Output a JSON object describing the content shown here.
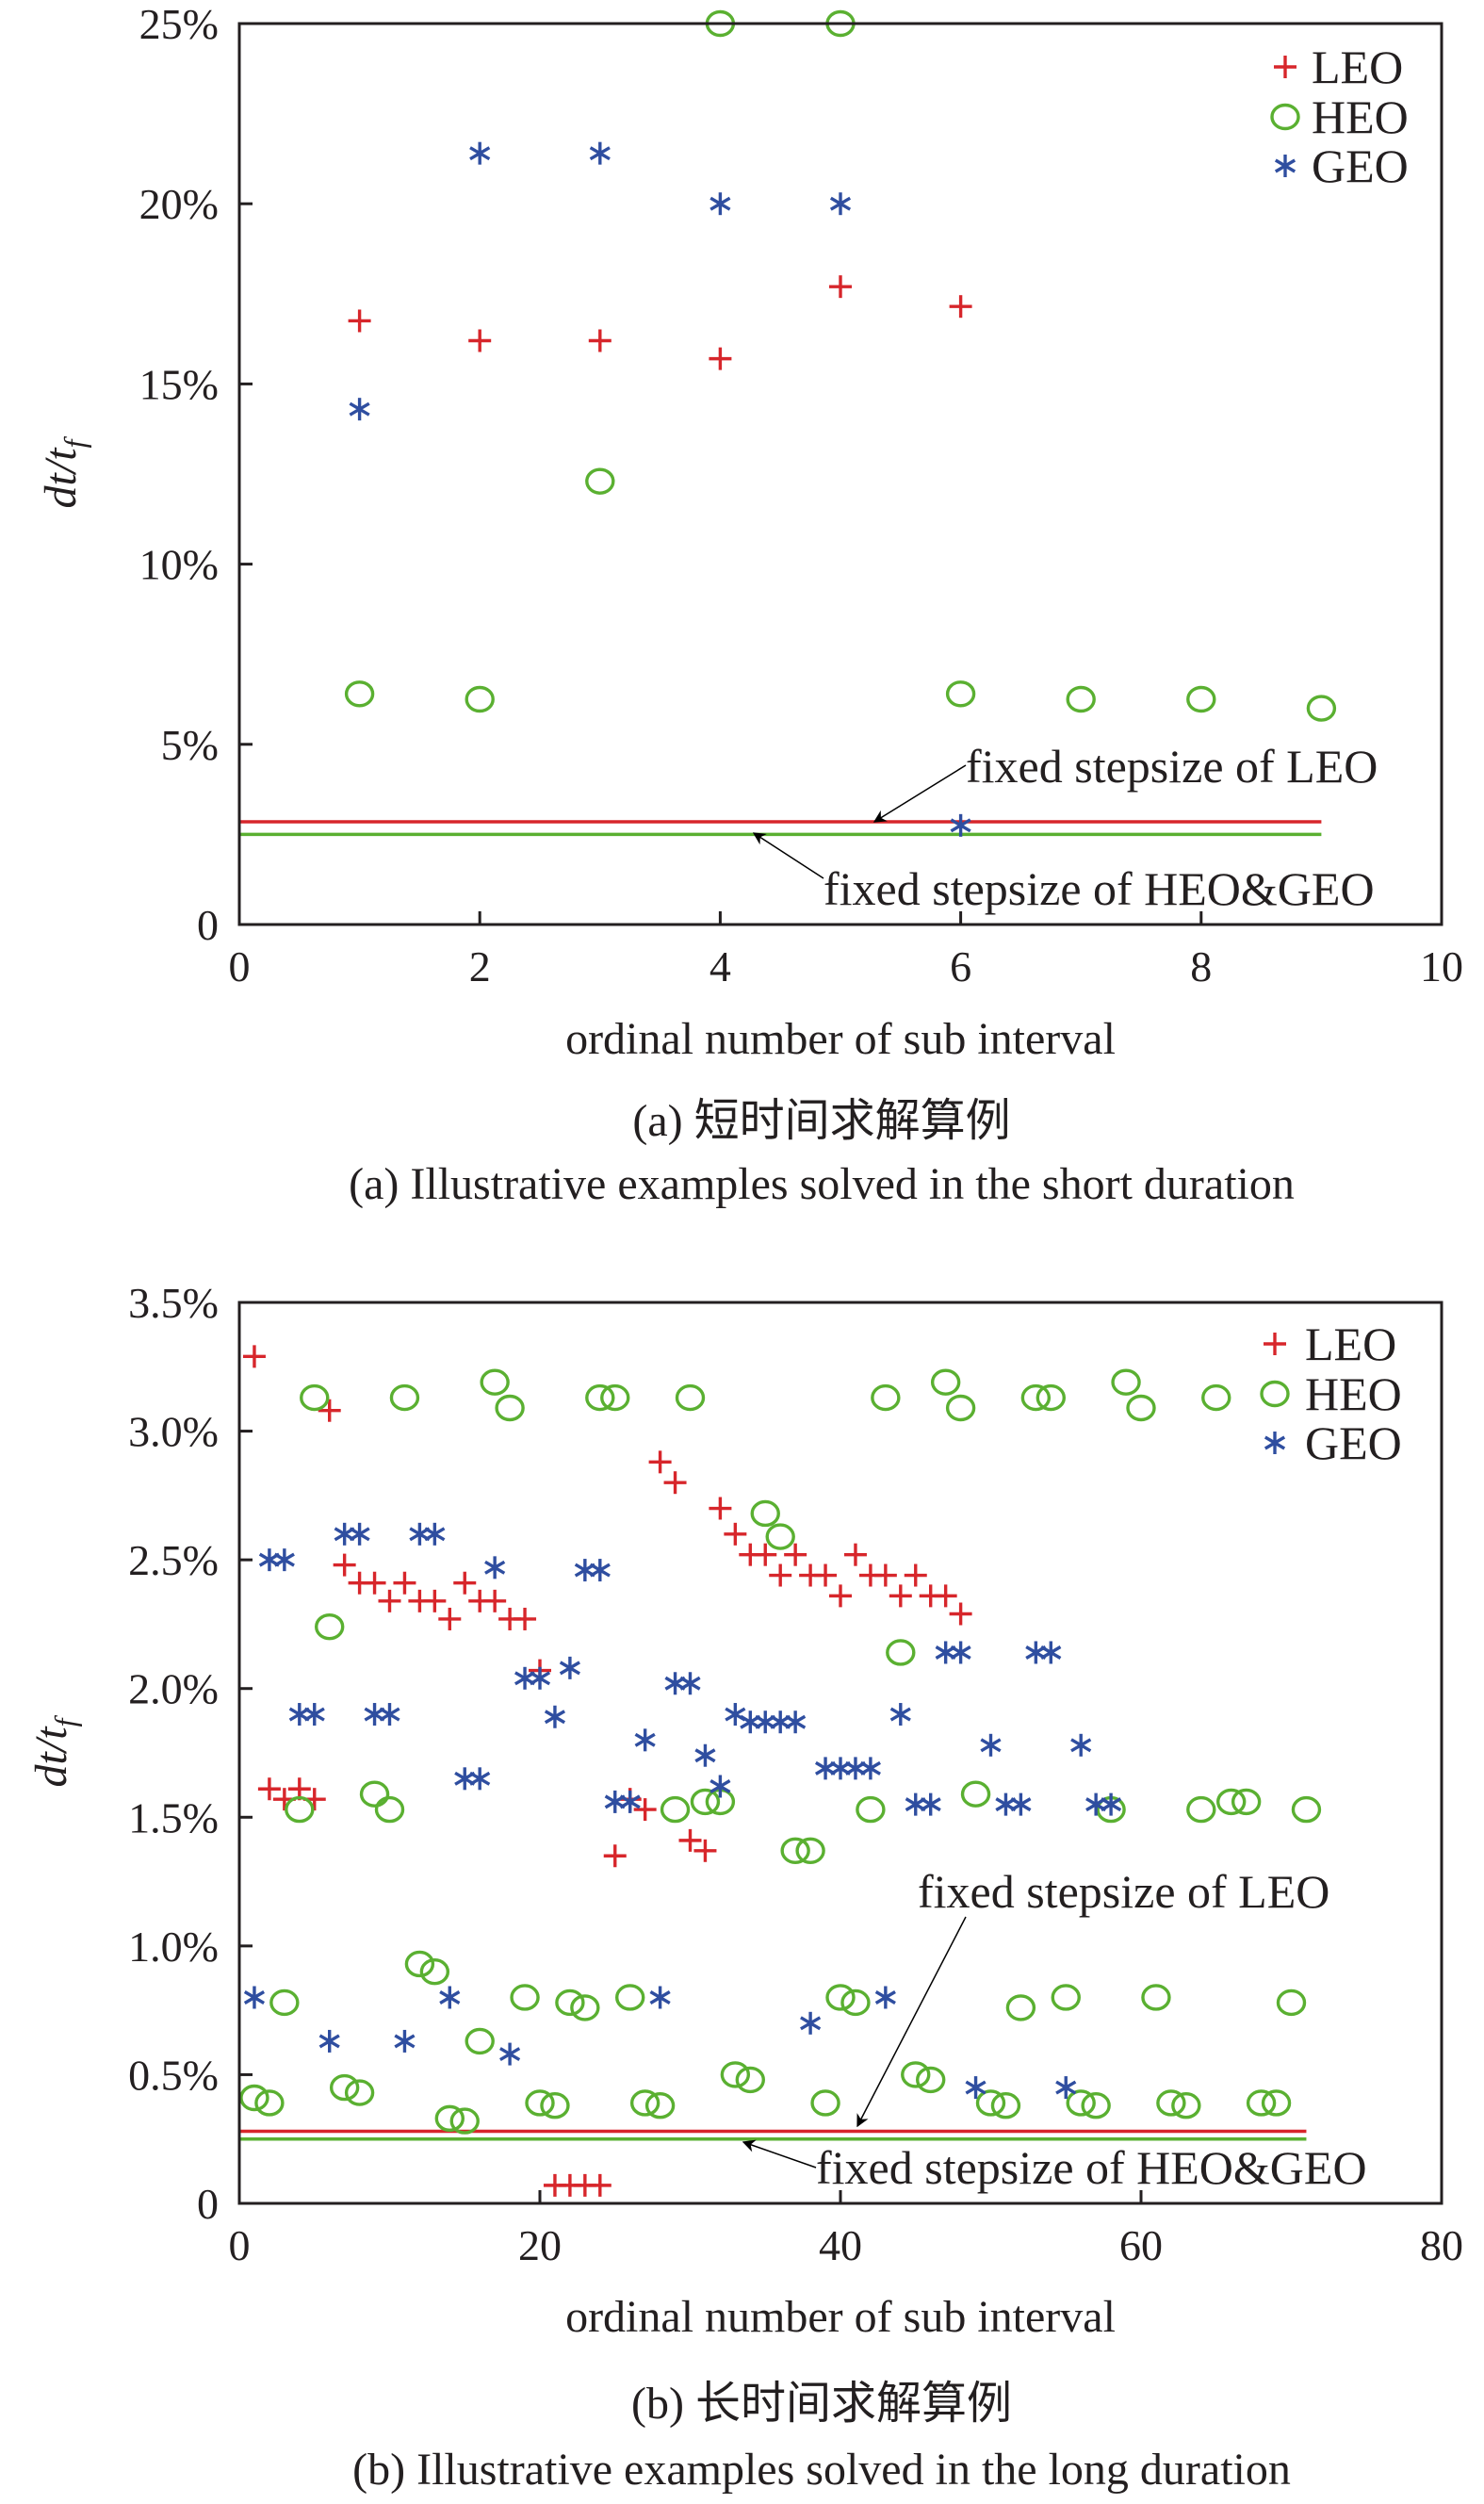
{
  "colors": {
    "LEO": "#d7262b",
    "HEO": "#5ab031",
    "GEO": "#2f4ea0",
    "axis": "#231f20"
  },
  "chart_data": [
    {
      "type": "scatter",
      "caption_cn": "(a) 短时间求解算例",
      "caption_en": "(a) Illustrative examples solved in the short duration",
      "xlabel": "ordinal number of sub interval",
      "ylabel": "dt/t_f",
      "ylabel_main": "dt/t",
      "ylabel_sub": "f",
      "xlim": [
        0,
        10
      ],
      "ylim": [
        0,
        25
      ],
      "xticks": [
        "0",
        "2",
        "4",
        "6",
        "8",
        "10"
      ],
      "xtick_values": [
        0,
        2,
        4,
        6,
        8,
        10
      ],
      "yticks": [
        "0",
        "5%",
        "10%",
        "15%",
        "20%",
        "25%"
      ],
      "ytick_values": [
        0,
        5,
        10,
        15,
        20,
        25
      ],
      "grid": false,
      "legend_position": "top-right",
      "series": [
        {
          "name": "LEO",
          "marker": "plus",
          "points": [
            [
              1,
              16.75
            ],
            [
              2,
              16.2
            ],
            [
              3,
              16.2
            ],
            [
              4,
              15.7
            ],
            [
              5,
              17.7
            ],
            [
              6,
              17.15
            ]
          ]
        },
        {
          "name": "HEO",
          "marker": "circle",
          "points": [
            [
              1,
              6.4
            ],
            [
              2,
              6.25
            ],
            [
              3,
              12.3
            ],
            [
              4,
              25
            ],
            [
              5,
              25
            ],
            [
              6,
              6.4
            ],
            [
              7,
              6.25
            ],
            [
              8,
              6.25
            ],
            [
              9,
              6.0
            ]
          ]
        },
        {
          "name": "GEO",
          "marker": "asterisk",
          "points": [
            [
              1,
              14.3
            ],
            [
              2,
              21.4
            ],
            [
              3,
              21.4
            ],
            [
              4,
              20
            ],
            [
              5,
              20
            ],
            [
              6,
              2.75
            ]
          ]
        }
      ],
      "reference_lines": [
        {
          "label": "fixed stepsize of LEO",
          "series": "LEO",
          "y": 2.85,
          "x_range": [
            0,
            9
          ]
        },
        {
          "label": "fixed stepsize of HEO&GEO",
          "series": "HEO",
          "y": 2.5,
          "x_range": [
            0,
            9
          ]
        }
      ]
    },
    {
      "type": "scatter",
      "caption_cn": "(b) 长时间求解算例",
      "caption_en": "(b) Illustrative examples solved in the long duration",
      "xlabel": "ordinal number of sub interval",
      "ylabel": "dt/t_f",
      "ylabel_main": "dt/t",
      "ylabel_sub": "f",
      "xlim": [
        0,
        80
      ],
      "ylim": [
        0,
        3.5
      ],
      "xticks": [
        "0",
        "20",
        "40",
        "60",
        "80"
      ],
      "xtick_values": [
        0,
        20,
        40,
        60,
        80
      ],
      "yticks": [
        "0",
        "0.5%",
        "1.0%",
        "1.5%",
        "2.0%",
        "2.5%",
        "3.0%",
        "3.5%"
      ],
      "ytick_values": [
        0,
        0.5,
        1.0,
        1.5,
        2.0,
        2.5,
        3.0,
        3.5
      ],
      "grid": false,
      "legend_position": "top-right",
      "series": [
        {
          "name": "LEO",
          "marker": "plus",
          "points": [
            [
              1,
              3.29
            ],
            [
              2,
              1.61
            ],
            [
              3,
              1.57
            ],
            [
              4,
              1.61
            ],
            [
              5,
              1.57
            ],
            [
              6,
              3.08
            ],
            [
              7,
              2.48
            ],
            [
              8,
              2.41
            ],
            [
              9,
              2.41
            ],
            [
              10,
              2.34
            ],
            [
              11,
              2.41
            ],
            [
              12,
              2.34
            ],
            [
              13,
              2.34
            ],
            [
              14,
              2.27
            ],
            [
              15,
              2.41
            ],
            [
              16,
              2.34
            ],
            [
              17,
              2.34
            ],
            [
              18,
              2.27
            ],
            [
              19,
              2.27
            ],
            [
              20,
              2.07
            ],
            [
              21,
              0.07
            ],
            [
              22,
              0.07
            ],
            [
              23,
              0.07
            ],
            [
              24,
              0.07
            ],
            [
              25,
              1.35
            ],
            [
              26,
              1.57
            ],
            [
              27,
              1.53
            ],
            [
              28,
              2.88
            ],
            [
              29,
              2.8
            ],
            [
              30,
              1.41
            ],
            [
              31,
              1.37
            ],
            [
              32,
              2.7
            ],
            [
              33,
              2.6
            ],
            [
              34,
              2.52
            ],
            [
              35,
              2.52
            ],
            [
              36,
              2.44
            ],
            [
              37,
              2.52
            ],
            [
              38,
              2.44
            ],
            [
              39,
              2.44
            ],
            [
              40,
              2.36
            ],
            [
              41,
              2.52
            ],
            [
              42,
              2.44
            ],
            [
              43,
              2.44
            ],
            [
              44,
              2.36
            ],
            [
              45,
              2.44
            ],
            [
              46,
              2.36
            ],
            [
              47,
              2.36
            ],
            [
              48,
              2.29
            ]
          ]
        },
        {
          "name": "HEO",
          "marker": "circle",
          "points": [
            [
              1,
              0.41
            ],
            [
              2,
              0.39
            ],
            [
              3,
              0.78
            ],
            [
              4,
              1.53
            ],
            [
              5,
              3.13
            ],
            [
              6,
              2.24
            ],
            [
              7,
              0.45
            ],
            [
              8,
              0.43
            ],
            [
              9,
              1.59
            ],
            [
              10,
              1.53
            ],
            [
              11,
              3.13
            ],
            [
              12,
              0.93
            ],
            [
              13,
              0.9
            ],
            [
              14,
              0.33
            ],
            [
              15,
              0.32
            ],
            [
              16,
              0.63
            ],
            [
              17,
              3.19
            ],
            [
              18,
              3.09
            ],
            [
              19,
              0.8
            ],
            [
              20,
              0.39
            ],
            [
              21,
              0.38
            ],
            [
              22,
              0.78
            ],
            [
              23,
              0.76
            ],
            [
              24,
              3.13
            ],
            [
              25,
              3.13
            ],
            [
              26,
              0.8
            ],
            [
              27,
              0.39
            ],
            [
              28,
              0.38
            ],
            [
              29,
              1.53
            ],
            [
              30,
              3.13
            ],
            [
              31,
              1.56
            ],
            [
              32,
              1.56
            ],
            [
              33,
              0.5
            ],
            [
              34,
              0.48
            ],
            [
              35,
              2.68
            ],
            [
              36,
              2.59
            ],
            [
              37,
              1.37
            ],
            [
              38,
              1.37
            ],
            [
              39,
              0.39
            ],
            [
              40,
              0.8
            ],
            [
              41,
              0.78
            ],
            [
              42,
              1.53
            ],
            [
              43,
              3.13
            ],
            [
              44,
              2.14
            ],
            [
              45,
              0.5
            ],
            [
              46,
              0.48
            ],
            [
              47,
              3.19
            ],
            [
              48,
              3.09
            ],
            [
              49,
              1.59
            ],
            [
              50,
              0.39
            ],
            [
              51,
              0.38
            ],
            [
              52,
              0.76
            ],
            [
              53,
              3.13
            ],
            [
              54,
              3.13
            ],
            [
              55,
              0.8
            ],
            [
              56,
              0.39
            ],
            [
              57,
              0.38
            ],
            [
              58,
              1.53
            ],
            [
              59,
              3.19
            ],
            [
              60,
              3.09
            ],
            [
              61,
              0.8
            ],
            [
              62,
              0.39
            ],
            [
              63,
              0.38
            ],
            [
              64,
              1.53
            ],
            [
              65,
              3.13
            ],
            [
              66,
              1.56
            ],
            [
              67,
              1.56
            ],
            [
              68,
              0.39
            ],
            [
              69,
              0.39
            ],
            [
              70,
              0.78
            ],
            [
              71,
              1.53
            ]
          ]
        },
        {
          "name": "GEO",
          "marker": "asterisk",
          "points": [
            [
              1,
              0.8
            ],
            [
              2,
              2.5
            ],
            [
              3,
              2.5
            ],
            [
              4,
              1.9
            ],
            [
              5,
              1.9
            ],
            [
              6,
              0.63
            ],
            [
              7,
              2.6
            ],
            [
              8,
              2.6
            ],
            [
              9,
              1.9
            ],
            [
              10,
              1.9
            ],
            [
              11,
              0.63
            ],
            [
              12,
              2.6
            ],
            [
              13,
              2.6
            ],
            [
              14,
              0.8
            ],
            [
              15,
              1.65
            ],
            [
              16,
              1.65
            ],
            [
              17,
              2.47
            ],
            [
              18,
              0.58
            ],
            [
              19,
              2.04
            ],
            [
              20,
              2.04
            ],
            [
              21,
              1.89
            ],
            [
              22,
              2.08
            ],
            [
              23,
              2.46
            ],
            [
              24,
              2.46
            ],
            [
              25,
              1.56
            ],
            [
              26,
              1.56
            ],
            [
              27,
              1.8
            ],
            [
              28,
              0.8
            ],
            [
              29,
              2.02
            ],
            [
              30,
              2.02
            ],
            [
              31,
              1.74
            ],
            [
              32,
              1.62
            ],
            [
              33,
              1.9
            ],
            [
              34,
              1.87
            ],
            [
              35,
              1.87
            ],
            [
              36,
              1.87
            ],
            [
              37,
              1.87
            ],
            [
              38,
              0.7
            ],
            [
              39,
              1.69
            ],
            [
              40,
              1.69
            ],
            [
              41,
              1.69
            ],
            [
              42,
              1.69
            ],
            [
              43,
              0.8
            ],
            [
              44,
              1.9
            ],
            [
              45,
              1.55
            ],
            [
              46,
              1.55
            ],
            [
              47,
              2.14
            ],
            [
              48,
              2.14
            ],
            [
              49,
              0.45
            ],
            [
              50,
              1.78
            ],
            [
              51,
              1.55
            ],
            [
              52,
              1.55
            ],
            [
              53,
              2.14
            ],
            [
              54,
              2.14
            ],
            [
              55,
              0.45
            ],
            [
              56,
              1.78
            ],
            [
              57,
              1.55
            ],
            [
              58,
              1.55
            ]
          ]
        }
      ],
      "reference_lines": [
        {
          "label": "fixed stepsize of LEO",
          "series": "LEO",
          "y": 0.28,
          "x_range": [
            0,
            71
          ]
        },
        {
          "label": "fixed stepsize of HEO&GEO",
          "series": "HEO",
          "y": 0.25,
          "x_range": [
            0,
            71
          ]
        }
      ]
    }
  ]
}
